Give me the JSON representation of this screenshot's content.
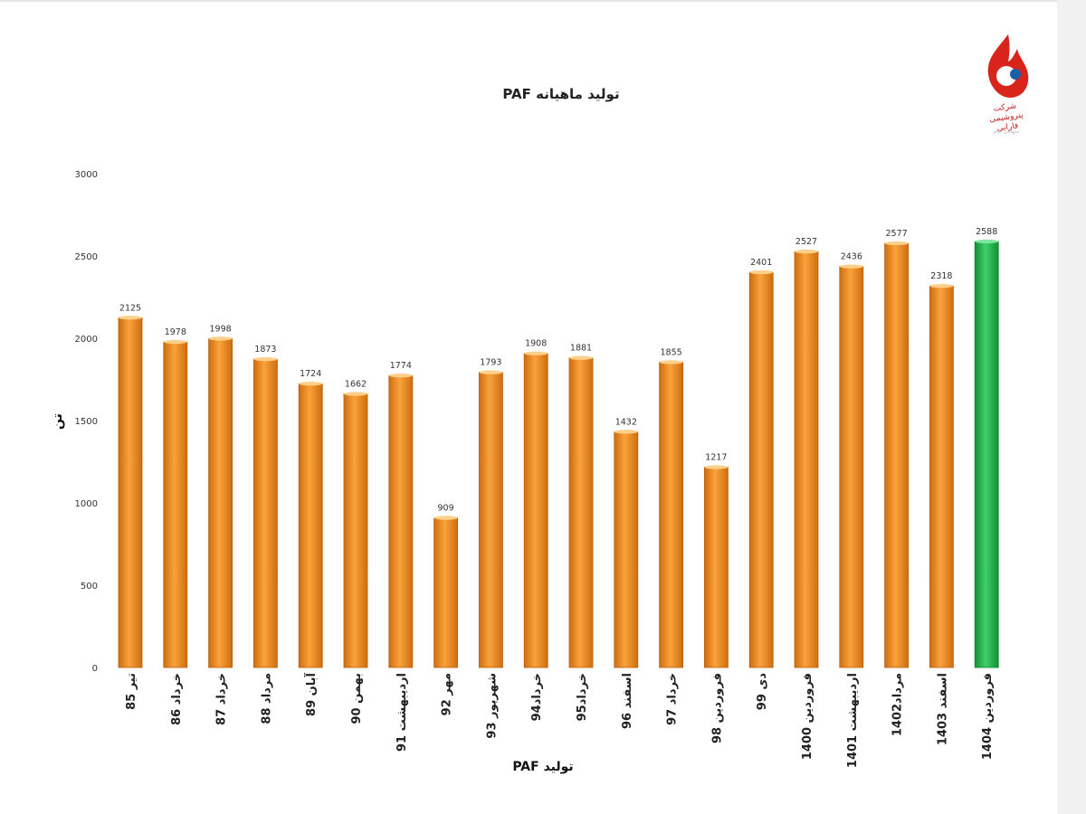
{
  "logo": {
    "caption": "شرکت پتروشیمی فارابی",
    "subcaption": "سهامی عام"
  },
  "chart_data": {
    "type": "bar",
    "title": "تولید ماهیانه PAF",
    "xlabel": "تولید PAF",
    "ylabel": "تن",
    "ylim": [
      0,
      3000
    ],
    "yticks": [
      0,
      500,
      1000,
      1500,
      2000,
      2500,
      3000
    ],
    "grid": false,
    "categories": [
      "تیر 85",
      "خرداد 86",
      "خرداد 87",
      "مرداد 88",
      "آبان 89",
      "بهمن 90",
      "اردیبهشت 91",
      "مهر 92",
      "شهریور 93",
      "خرداد94",
      "خرداد95",
      "اسفند 96",
      "خرداد 97",
      "فروردین 98",
      "دی 99",
      "فروردین 1400",
      "اردیبهشت 1401",
      "مرداد1402",
      "اسفند 1403",
      "فروردین 1404"
    ],
    "values": [
      2125,
      1978,
      1998,
      1873,
      1724,
      1662,
      1774,
      909,
      1793,
      1908,
      1881,
      1432,
      1855,
      1217,
      2401,
      2527,
      2436,
      2577,
      2318,
      2588
    ],
    "colors": {
      "default": "#f0901e",
      "highlight": "#22b04a"
    },
    "highlight_index": 19
  }
}
